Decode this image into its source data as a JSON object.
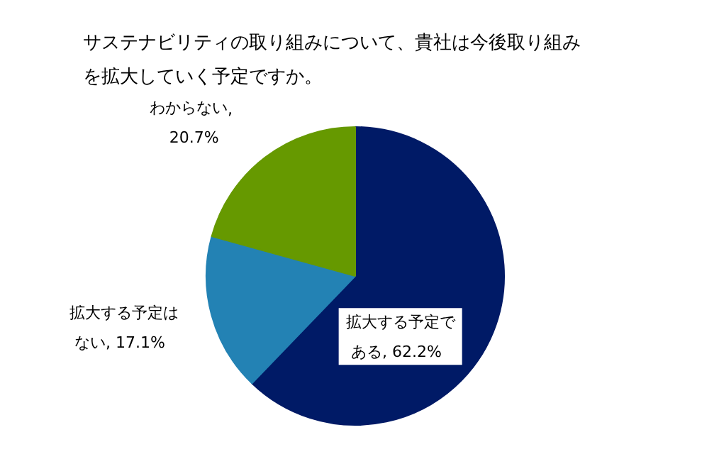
{
  "chart_data": {
    "type": "pie",
    "title": "サステナビリティの取り組みについて、貴社は今後取り組みを拡大していく予定ですか。",
    "categories": [
      "拡大する予定である",
      "拡大する予定はない",
      "わからない"
    ],
    "values": [
      62.2,
      17.1,
      20.7
    ],
    "colors": [
      "#001a66",
      "#2382b4",
      "#669900"
    ],
    "value_labels": [
      ", 62.2%",
      ", 17.1%",
      ", 20.7%"
    ]
  }
}
